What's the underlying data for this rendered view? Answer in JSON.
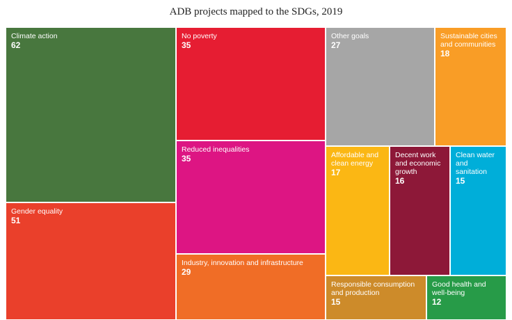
{
  "chart_data": {
    "type": "treemap",
    "title": "ADB projects mapped to the SDGs, 2019",
    "items": [
      {
        "label": "Climate action",
        "value": 62,
        "color": "#48773E"
      },
      {
        "label": "Gender equality",
        "value": 51,
        "color": "#EA402B"
      },
      {
        "label": "No poverty",
        "value": 35,
        "color": "#E61D32"
      },
      {
        "label": "Reduced inequalities",
        "value": 35,
        "color": "#DD1583"
      },
      {
        "label": "Industry, innovation and infrastructure",
        "value": 29,
        "color": "#F06D26"
      },
      {
        "label": "Other goals",
        "value": 27,
        "color": "#A6A6A6"
      },
      {
        "label": "Sustainable cities and communities",
        "value": 18,
        "color": "#F99D26"
      },
      {
        "label": "Affordable and clean energy",
        "value": 17,
        "color": "#FBB714"
      },
      {
        "label": "Decent work and economic growth",
        "value": 16,
        "color": "#8D1838"
      },
      {
        "label": "Clean water and sanitation",
        "value": 15,
        "color": "#00AED9"
      },
      {
        "label": "Responsible consumption and production",
        "value": 15,
        "color": "#CD8B2A"
      },
      {
        "label": "Good health and well-being",
        "value": 12,
        "color": "#279B48"
      }
    ]
  }
}
